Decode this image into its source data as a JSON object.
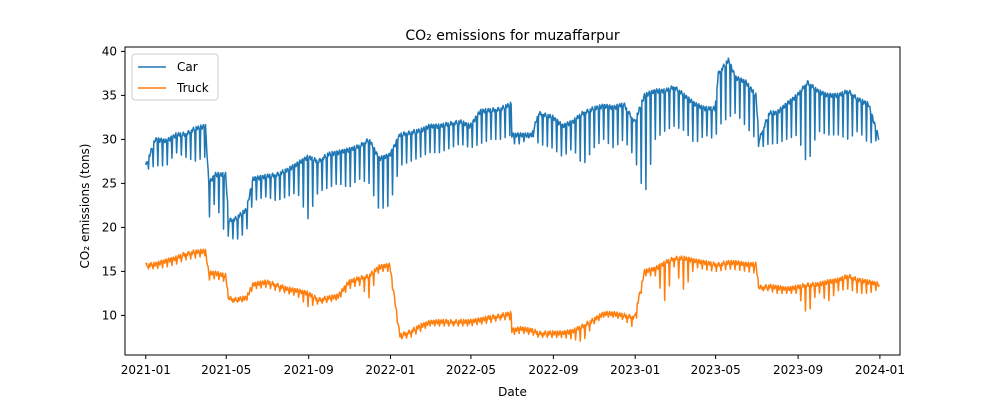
{
  "chart_data": {
    "type": "line",
    "title": "CO₂ emissions for muzaffarpur",
    "xlabel": "Date",
    "ylabel": "CO₂ emissions (tons)",
    "xlim": [
      "2020-12-01",
      "2024-01-31"
    ],
    "ylim": [
      5.5,
      40.5
    ],
    "x_ticks": [
      "2021-01",
      "2021-05",
      "2021-09",
      "2022-01",
      "2022-05",
      "2022-09",
      "2023-01",
      "2023-05",
      "2023-09",
      "2024-01"
    ],
    "y_ticks": [
      10,
      15,
      20,
      25,
      30,
      35,
      40
    ],
    "legend": {
      "placement": "top-left"
    },
    "grid": false,
    "series": [
      {
        "name": "Car",
        "color": "#1f77b4",
        "x": [
          "2021-01-01",
          "2021-01-15",
          "2021-02-01",
          "2021-02-15",
          "2021-03-01",
          "2021-03-15",
          "2021-03-31",
          "2021-04-05",
          "2021-04-15",
          "2021-04-30",
          "2021-05-05",
          "2021-05-15",
          "2021-05-31",
          "2021-06-10",
          "2021-06-30",
          "2021-07-15",
          "2021-07-31",
          "2021-08-15",
          "2021-08-31",
          "2021-09-15",
          "2021-09-30",
          "2021-10-15",
          "2021-10-31",
          "2021-11-15",
          "2021-11-30",
          "2021-12-15",
          "2021-12-31",
          "2022-01-15",
          "2022-01-31",
          "2022-02-15",
          "2022-02-28",
          "2022-03-15",
          "2022-03-31",
          "2022-04-15",
          "2022-04-30",
          "2022-05-15",
          "2022-05-31",
          "2022-06-15",
          "2022-06-30",
          "2022-07-01",
          "2022-07-15",
          "2022-07-31",
          "2022-08-10",
          "2022-08-31",
          "2022-09-15",
          "2022-09-30",
          "2022-10-15",
          "2022-10-31",
          "2022-11-15",
          "2022-11-30",
          "2022-12-15",
          "2022-12-31",
          "2023-01-15",
          "2023-01-31",
          "2023-02-15",
          "2023-02-28",
          "2023-03-15",
          "2023-03-31",
          "2023-04-15",
          "2023-04-30",
          "2023-05-05",
          "2023-05-20",
          "2023-05-31",
          "2023-06-15",
          "2023-06-30",
          "2023-07-05",
          "2023-07-20",
          "2023-07-31",
          "2023-08-15",
          "2023-08-31",
          "2023-09-15",
          "2023-09-30",
          "2023-10-15",
          "2023-10-31",
          "2023-11-15",
          "2023-11-30",
          "2023-12-15",
          "2023-12-31"
        ],
        "values": [
          27.0,
          30.0,
          29.8,
          30.5,
          30.6,
          31.2,
          31.5,
          25.0,
          26.0,
          26.0,
          20.8,
          21.0,
          22.0,
          25.5,
          25.8,
          26.0,
          26.5,
          27.2,
          28.0,
          27.5,
          28.3,
          28.5,
          28.8,
          29.2,
          30.0,
          27.8,
          28.2,
          30.5,
          30.8,
          31.0,
          31.5,
          31.5,
          31.8,
          32.0,
          31.5,
          33.2,
          33.3,
          33.5,
          34.0,
          30.5,
          30.5,
          30.5,
          33.0,
          32.5,
          31.5,
          32.0,
          33.0,
          33.5,
          33.8,
          33.6,
          34.0,
          32.0,
          35.0,
          35.5,
          35.5,
          36.0,
          35.0,
          34.0,
          33.5,
          33.5,
          37.5,
          39.0,
          37.0,
          36.5,
          35.0,
          30.0,
          33.0,
          33.0,
          34.0,
          35.0,
          36.5,
          35.5,
          35.0,
          35.0,
          35.5,
          34.5,
          34.0,
          30.0
        ],
        "dips": [
          26.5,
          27.0,
          27.0,
          28.5,
          28.0,
          27.5,
          28.0,
          21.0,
          23.0,
          19.0,
          19.0,
          18.5,
          19.5,
          23.0,
          23.5,
          23.0,
          23.5,
          24.0,
          21.0,
          24.0,
          24.5,
          25.0,
          24.5,
          25.5,
          25.0,
          22.0,
          22.5,
          27.0,
          27.5,
          28.0,
          28.5,
          28.5,
          29.0,
          29.5,
          29.0,
          29.5,
          30.0,
          30.0,
          30.5,
          29.5,
          29.5,
          30.5,
          29.5,
          29.0,
          28.0,
          29.0,
          27.0,
          29.0,
          30.0,
          29.0,
          30.0,
          28.0,
          23.5,
          30.0,
          31.0,
          31.5,
          31.0,
          29.5,
          30.5,
          30.0,
          31.5,
          32.5,
          33.0,
          31.5,
          30.0,
          29.0,
          29.5,
          29.5,
          30.0,
          30.5,
          27.0,
          31.0,
          30.5,
          30.5,
          30.0,
          31.0,
          29.5,
          30.0
        ]
      },
      {
        "name": "Truck",
        "color": "#ff7f0e",
        "x": [
          "2021-01-01",
          "2021-01-15",
          "2021-02-01",
          "2021-02-15",
          "2021-03-01",
          "2021-03-15",
          "2021-03-31",
          "2021-04-05",
          "2021-04-15",
          "2021-04-30",
          "2021-05-05",
          "2021-05-15",
          "2021-05-31",
          "2021-06-10",
          "2021-06-30",
          "2021-07-15",
          "2021-07-31",
          "2021-08-15",
          "2021-08-31",
          "2021-09-15",
          "2021-09-30",
          "2021-10-15",
          "2021-10-31",
          "2021-11-15",
          "2021-11-30",
          "2021-12-15",
          "2021-12-31",
          "2022-01-15",
          "2022-01-31",
          "2022-02-15",
          "2022-02-28",
          "2022-03-15",
          "2022-03-31",
          "2022-04-15",
          "2022-04-30",
          "2022-05-15",
          "2022-05-31",
          "2022-06-15",
          "2022-06-30",
          "2022-07-01",
          "2022-07-15",
          "2022-07-31",
          "2022-08-10",
          "2022-08-31",
          "2022-09-15",
          "2022-09-30",
          "2022-10-15",
          "2022-10-31",
          "2022-11-15",
          "2022-11-30",
          "2022-12-15",
          "2022-12-31",
          "2023-01-15",
          "2023-01-31",
          "2023-02-15",
          "2023-02-28",
          "2023-03-15",
          "2023-03-31",
          "2023-04-15",
          "2023-04-30",
          "2023-05-05",
          "2023-05-20",
          "2023-05-31",
          "2023-06-15",
          "2023-06-30",
          "2023-07-05",
          "2023-07-20",
          "2023-07-31",
          "2023-08-15",
          "2023-08-31",
          "2023-09-15",
          "2023-09-30",
          "2023-10-15",
          "2023-10-31",
          "2023-11-15",
          "2023-11-30",
          "2023-12-15",
          "2023-12-31"
        ],
        "values": [
          15.7,
          15.8,
          16.2,
          16.5,
          17.0,
          17.2,
          17.3,
          14.8,
          14.8,
          14.5,
          12.0,
          11.8,
          12.0,
          13.5,
          13.8,
          13.5,
          13.0,
          12.8,
          12.5,
          11.8,
          12.0,
          12.2,
          13.8,
          14.2,
          14.5,
          15.5,
          15.7,
          7.7,
          8.2,
          8.8,
          9.2,
          9.3,
          9.3,
          9.3,
          9.3,
          9.5,
          9.8,
          10.0,
          10.2,
          8.3,
          8.5,
          8.3,
          8.0,
          8.0,
          8.0,
          8.2,
          8.8,
          9.5,
          10.2,
          10.2,
          10.0,
          9.8,
          15.0,
          15.3,
          16.0,
          16.5,
          16.5,
          16.2,
          16.0,
          15.8,
          15.8,
          16.0,
          16.0,
          15.8,
          15.8,
          13.2,
          13.3,
          13.2,
          13.0,
          13.2,
          13.5,
          13.5,
          13.8,
          14.0,
          14.5,
          14.0,
          13.8,
          13.5
        ],
        "dips": [
          15.3,
          15.3,
          15.5,
          15.8,
          16.3,
          16.5,
          16.8,
          14.0,
          14.2,
          13.8,
          11.5,
          11.5,
          11.6,
          13.0,
          13.2,
          12.8,
          12.5,
          12.2,
          11.0,
          11.3,
          11.5,
          11.8,
          13.0,
          13.5,
          12.0,
          15.0,
          15.0,
          7.3,
          7.5,
          8.2,
          8.8,
          8.8,
          8.8,
          8.8,
          8.8,
          9.0,
          9.2,
          9.5,
          9.5,
          7.8,
          8.0,
          7.8,
          7.5,
          7.5,
          7.5,
          7.3,
          7.0,
          9.0,
          9.8,
          9.8,
          9.5,
          8.5,
          14.5,
          14.5,
          11.5,
          15.5,
          12.8,
          15.5,
          15.2,
          15.0,
          15.0,
          15.3,
          15.2,
          15.0,
          14.8,
          12.8,
          12.8,
          12.5,
          12.5,
          12.5,
          10.0,
          12.8,
          11.5,
          12.8,
          13.0,
          12.5,
          12.5,
          13.0
        ]
      }
    ]
  }
}
